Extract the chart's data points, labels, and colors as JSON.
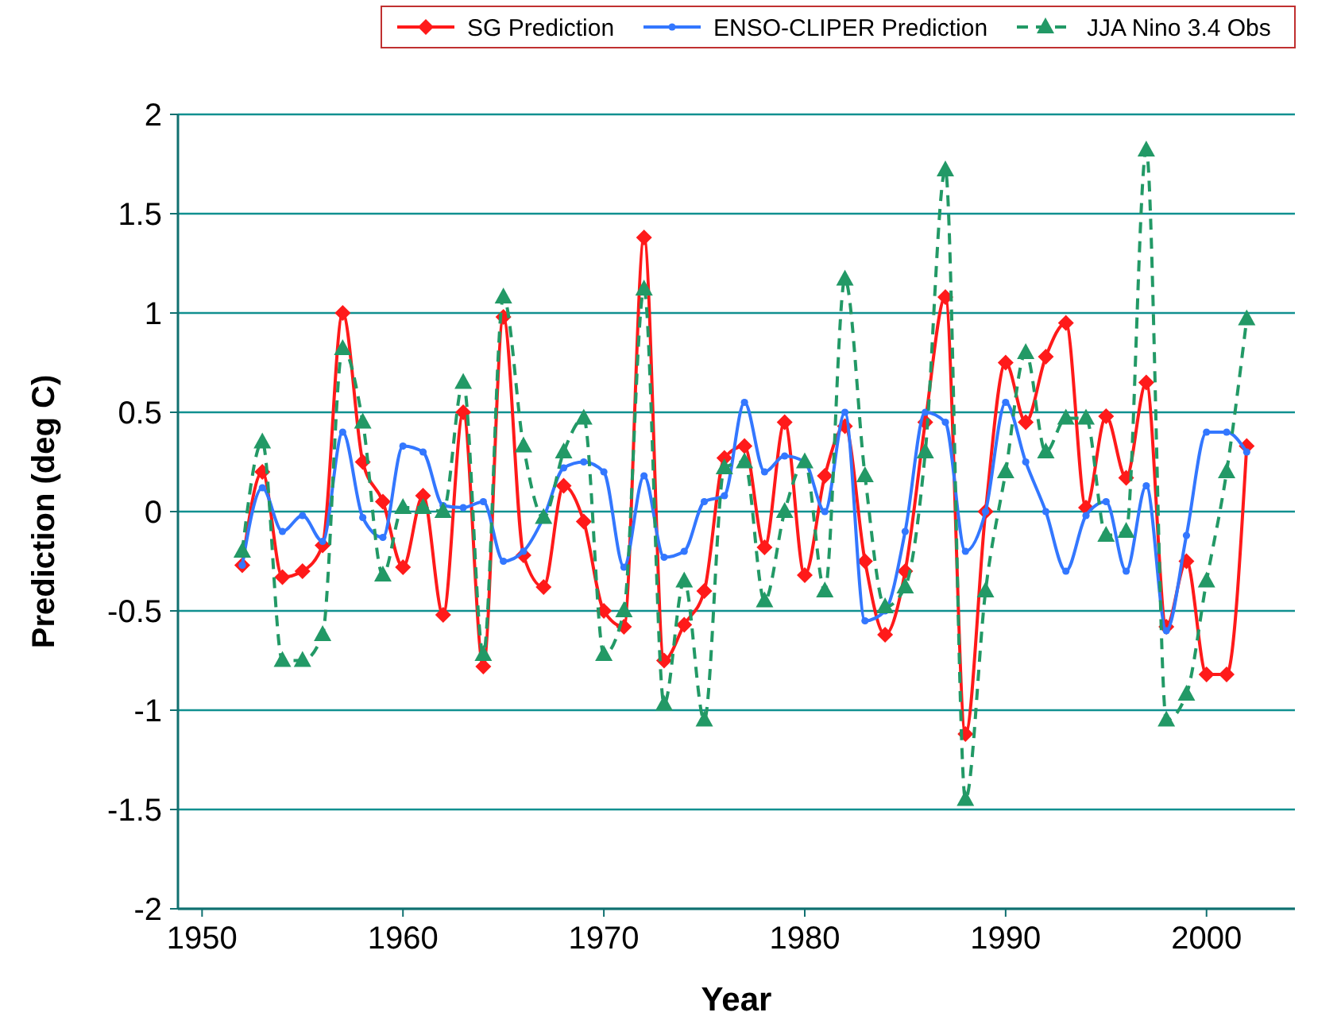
{
  "chart_data": {
    "type": "line",
    "xlabel": "Year",
    "ylabel": "Prediction (deg C)",
    "x": [
      1952,
      1953,
      1954,
      1955,
      1956,
      1957,
      1958,
      1959,
      1960,
      1961,
      1962,
      1963,
      1964,
      1965,
      1966,
      1967,
      1968,
      1969,
      1970,
      1971,
      1972,
      1973,
      1974,
      1975,
      1976,
      1977,
      1978,
      1979,
      1980,
      1981,
      1982,
      1983,
      1984,
      1985,
      1986,
      1987,
      1988,
      1989,
      1990,
      1991,
      1992,
      1993,
      1994,
      1995,
      1996,
      1997,
      1998,
      1999,
      2000,
      2001,
      2002
    ],
    "xlim": [
      1948.8,
      2004.4
    ],
    "xticks": [
      1950,
      1960,
      1970,
      1980,
      1990,
      2000
    ],
    "ylim": [
      -2,
      2
    ],
    "yticks": [
      -2,
      -1.5,
      -1,
      -0.5,
      0,
      0.5,
      1,
      1.5,
      2
    ],
    "grid": "y",
    "legend": "top right",
    "series": [
      {
        "name": "SG Prediction",
        "color": "#ff1a1a",
        "marker": "diamond",
        "line_style": "solid",
        "values": [
          -0.27,
          0.2,
          -0.33,
          -0.3,
          -0.17,
          1.0,
          0.25,
          0.05,
          -0.28,
          0.08,
          -0.52,
          0.5,
          -0.78,
          0.98,
          -0.22,
          -0.38,
          0.13,
          -0.05,
          -0.5,
          -0.58,
          1.38,
          -0.75,
          -0.57,
          -0.4,
          0.27,
          0.33,
          -0.18,
          0.45,
          -0.32,
          0.18,
          0.43,
          -0.25,
          -0.62,
          -0.3,
          0.45,
          1.08,
          -1.12,
          0.0,
          0.75,
          0.45,
          0.78,
          0.95,
          0.02,
          0.48,
          0.17,
          0.65,
          -0.58,
          -0.25,
          -0.82,
          -0.82,
          0.33
        ]
      },
      {
        "name": "ENSO-CLIPER Prediction",
        "color": "#3377ff",
        "marker": "circle",
        "line_style": "solid",
        "values": [
          -0.27,
          0.12,
          -0.1,
          -0.02,
          -0.15,
          0.4,
          -0.03,
          -0.13,
          0.33,
          0.3,
          0.03,
          0.02,
          0.05,
          -0.25,
          -0.2,
          -0.03,
          0.22,
          0.25,
          0.2,
          -0.28,
          0.18,
          -0.23,
          -0.2,
          0.05,
          0.08,
          0.55,
          0.2,
          0.28,
          0.25,
          0.0,
          0.5,
          -0.55,
          -0.5,
          -0.1,
          0.5,
          0.45,
          -0.2,
          0.0,
          0.55,
          0.25,
          0.0,
          -0.3,
          -0.02,
          0.05,
          -0.3,
          0.13,
          -0.6,
          -0.12,
          0.4,
          0.4,
          0.3
        ]
      },
      {
        "name": "JJA Nino 3.4 Obs",
        "color": "#229966",
        "marker": "triangle",
        "line_style": "dashed",
        "values": [
          -0.2,
          0.35,
          -0.75,
          -0.75,
          -0.62,
          0.82,
          0.45,
          -0.32,
          0.02,
          0.02,
          0.0,
          0.65,
          -0.72,
          1.08,
          0.33,
          -0.03,
          0.3,
          0.47,
          -0.72,
          -0.5,
          1.12,
          -0.97,
          -0.35,
          -1.05,
          0.22,
          0.25,
          -0.45,
          0.0,
          0.25,
          -0.4,
          1.17,
          0.18,
          -0.48,
          -0.38,
          0.3,
          1.72,
          -1.45,
          -0.4,
          0.2,
          0.8,
          0.3,
          0.47,
          0.47,
          -0.12,
          -0.1,
          1.82,
          -1.05,
          -0.92,
          -0.35,
          0.2,
          0.97
        ]
      }
    ]
  }
}
